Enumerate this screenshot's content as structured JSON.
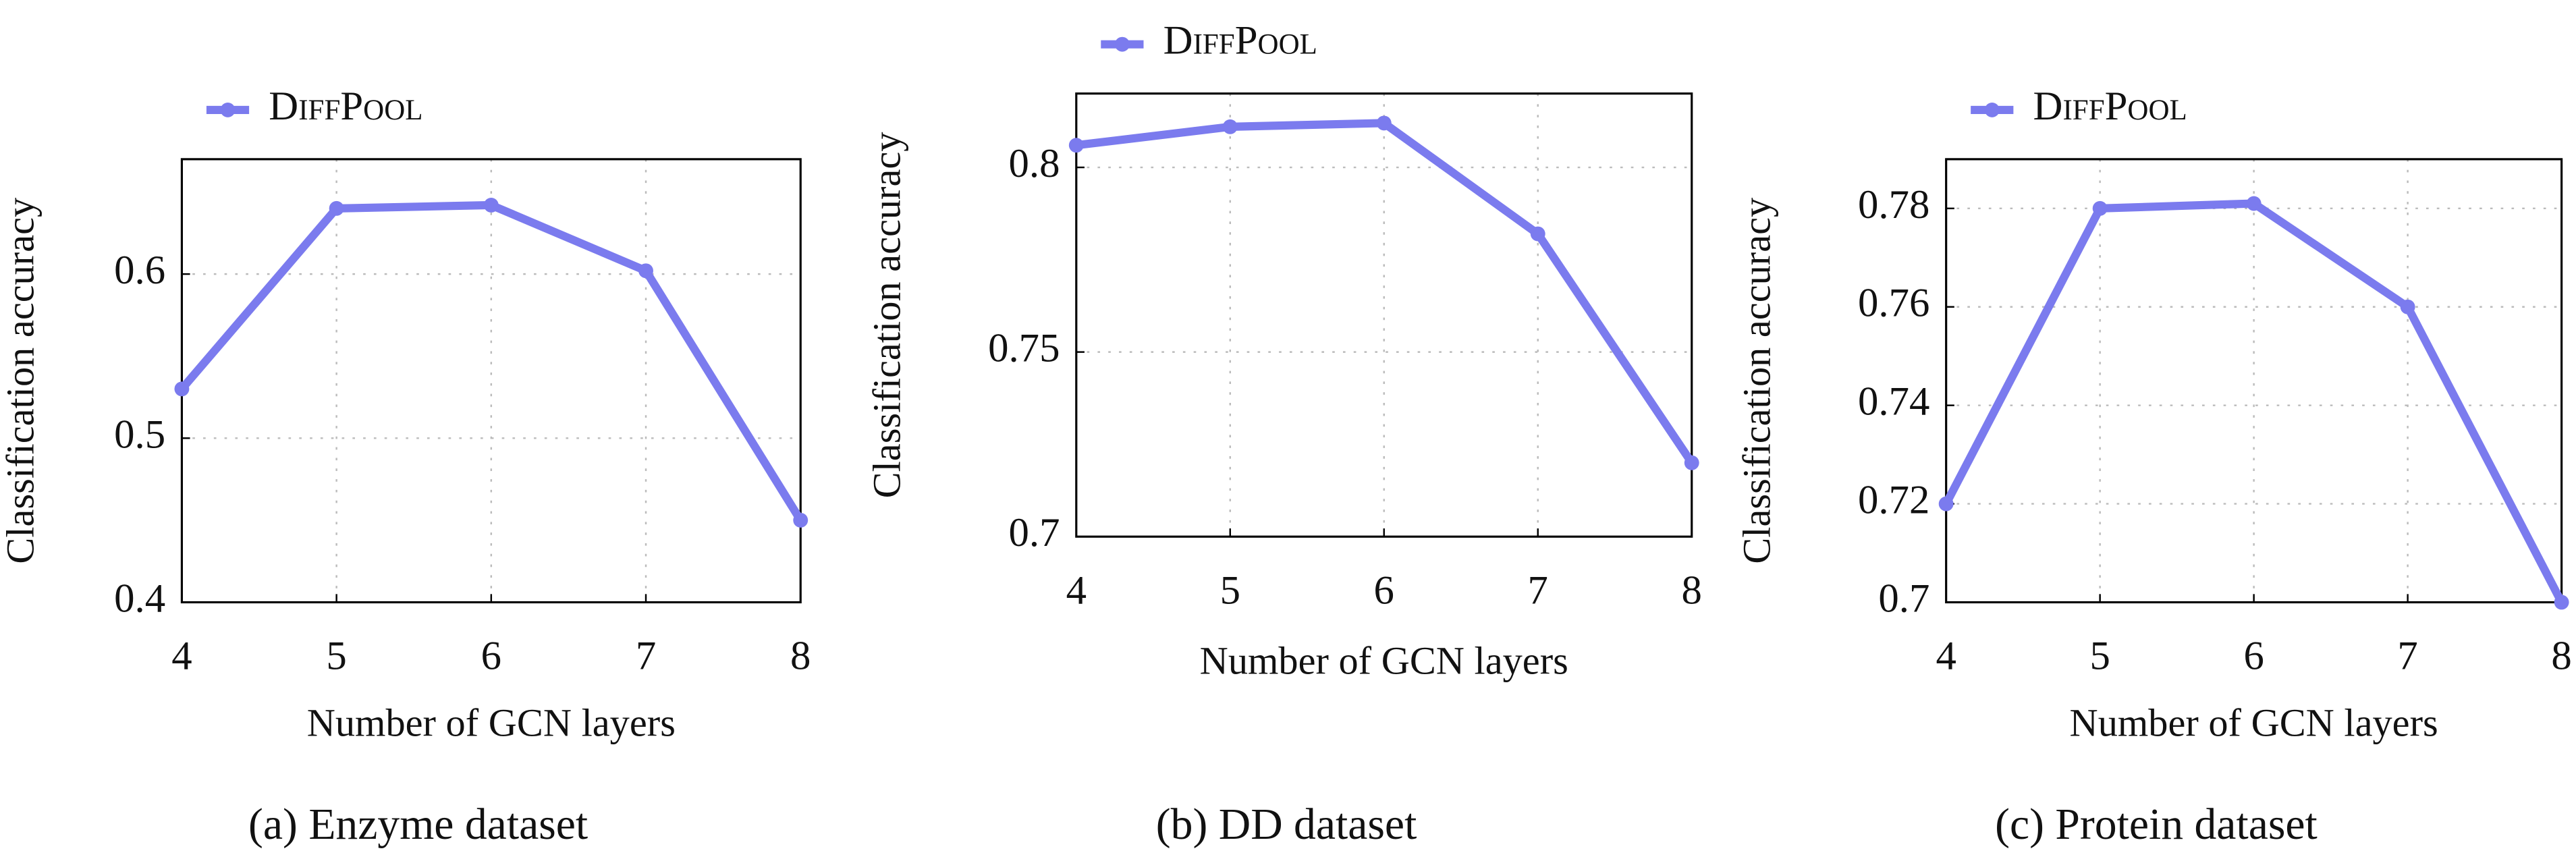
{
  "chart_data": [
    {
      "type": "line",
      "caption": "(a) Enzyme dataset",
      "x_label": "Number of GCN layers",
      "y_label": "Classification accuracy",
      "x": [
        4,
        5,
        6,
        7,
        8
      ],
      "xlim": [
        4,
        8
      ],
      "xticks": [
        4,
        5,
        6,
        7,
        8
      ],
      "ylim": [
        0.4,
        0.67
      ],
      "yticks": [
        0.4,
        0.5,
        0.6
      ],
      "grid": true,
      "legend": "top-left",
      "series": [
        {
          "name": "DiffPool",
          "color": "#7b7bee",
          "values": [
            0.53,
            0.64,
            0.642,
            0.602,
            0.45
          ]
        }
      ]
    },
    {
      "type": "line",
      "caption": "(b) DD dataset",
      "x_label": "Number of GCN layers",
      "y_label": "Classification accuracy",
      "x": [
        4,
        5,
        6,
        7,
        8
      ],
      "xlim": [
        4,
        8
      ],
      "xticks": [
        4,
        5,
        6,
        7,
        8
      ],
      "ylim": [
        0.7,
        0.82
      ],
      "yticks": [
        0.7,
        0.75,
        0.8
      ],
      "grid": true,
      "legend": "top-left",
      "series": [
        {
          "name": "DiffPool",
          "color": "#7b7bee",
          "values": [
            0.806,
            0.811,
            0.812,
            0.782,
            0.72
          ]
        }
      ]
    },
    {
      "type": "line",
      "caption": "(c) Protein dataset",
      "x_label": "Number of GCN layers",
      "y_label": "Classification accuracy",
      "x": [
        4,
        5,
        6,
        7,
        8
      ],
      "xlim": [
        4,
        8
      ],
      "xticks": [
        4,
        5,
        6,
        7,
        8
      ],
      "ylim": [
        0.7,
        0.79
      ],
      "yticks": [
        0.7,
        0.72,
        0.74,
        0.76,
        0.78
      ],
      "grid": true,
      "legend": "top-left",
      "series": [
        {
          "name": "DiffPool",
          "color": "#7b7bee",
          "values": [
            0.72,
            0.78,
            0.781,
            0.76,
            0.7
          ]
        }
      ]
    }
  ]
}
